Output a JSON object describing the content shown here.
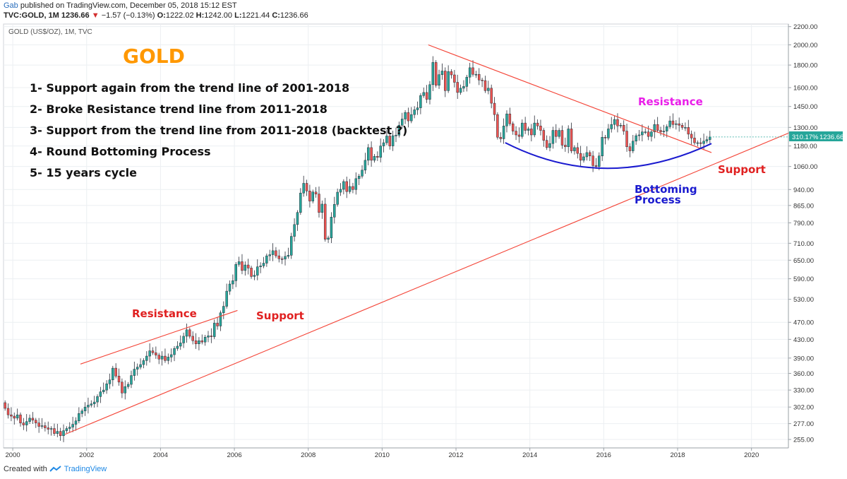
{
  "header": {
    "user": "Gab",
    "published": "published on TradingView.com, December 05, 2018 15:12 EST",
    "symbol": "TVC:GOLD, 1M",
    "price": "1236.66",
    "change_arrow": "▼",
    "change": "−1.57 (−0.13%)",
    "o_label": "O:",
    "o_value": "1222.02",
    "h_label": "H:",
    "h_value": "1242.00",
    "l_label": "L:",
    "l_value": "1221.44",
    "c_label": "C:",
    "c_value": "1236.66"
  },
  "legend_label": "GOLD (US$/OZ), 1M, TVC",
  "annotations": {
    "title": "GOLD",
    "points": [
      "1- Support again from the trend line of 2001-2018",
      "2- Broke Resistance trend line from 2011-2018",
      "3- Support from the trend line from 2011-2018 (backtest ?)",
      "4- Round Bottoming Process",
      "5- 15 years cycle"
    ],
    "resistance_left": "Resistance",
    "support_left": "Support",
    "resistance_right": "Resistance",
    "support_right": "Support",
    "bottoming_1": "Bottoming",
    "bottoming_2": "Process"
  },
  "price_badge": {
    "pct": "310.17%",
    "value": "1236.66"
  },
  "footer": {
    "created": "Created with",
    "brand": "TradingView"
  },
  "colors": {
    "up": "#26a69a",
    "down": "#ef5350",
    "trend": "#f44336",
    "curve": "#1a1acf",
    "title": "#ff9800",
    "resistance_right": "#e91ee9",
    "badge": "#26a69a"
  },
  "chart_data": {
    "type": "candlestick",
    "title": "GOLD (US$/OZ), 1M, TVC",
    "x_range": [
      1999.75,
      2021.0
    ],
    "y_scale": "log",
    "y_range": [
      244,
      2230
    ],
    "x_ticks": [
      "2000",
      "2002",
      "2004",
      "2006",
      "2008",
      "2010",
      "2012",
      "2014",
      "2016",
      "2018",
      "2020"
    ],
    "y_ticks": [
      "2200.00",
      "2000.00",
      "1800.00",
      "1600.00",
      "1450.00",
      "1300.00",
      "1180.00",
      "1060.00",
      "940.00",
      "865.00",
      "790.00",
      "710.00",
      "650.00",
      "590.00",
      "530.00",
      "470.00",
      "430.00",
      "390.00",
      "360.00",
      "330.00",
      "302.00",
      "277.00",
      "255.00"
    ],
    "grid": true,
    "first_date": "1999-10",
    "monthly_close": [
      300,
      290,
      288,
      285,
      290,
      278,
      275,
      280,
      285,
      282,
      278,
      273,
      274,
      271,
      269,
      270,
      263,
      266,
      260,
      267,
      270,
      272,
      276,
      281,
      292,
      296,
      302,
      305,
      307,
      310,
      319,
      327,
      330,
      341,
      348,
      370,
      355,
      344,
      325,
      336,
      340,
      356,
      368,
      372,
      377,
      385,
      394,
      405,
      401,
      396,
      388,
      394,
      385,
      392,
      397,
      410,
      415,
      422,
      437,
      452,
      437,
      427,
      420,
      427,
      424,
      435,
      438,
      436,
      468,
      461,
      494,
      511,
      553,
      574,
      584,
      636,
      645,
      616,
      634,
      624,
      597,
      601,
      628,
      631,
      640,
      665,
      669,
      683,
      665,
      655,
      654,
      663,
      667,
      736,
      783,
      834,
      923,
      971,
      933,
      885,
      928,
      918,
      834,
      871,
      725,
      730,
      814,
      870,
      927,
      941,
      980,
      930,
      955,
      940,
      995,
      1008,
      1040,
      1095,
      1170,
      1095,
      1118,
      1112,
      1180,
      1200,
      1243,
      1180,
      1245,
      1248,
      1315,
      1358,
      1405,
      1345,
      1390,
      1425,
      1440,
      1535,
      1560,
      1505,
      1625,
      1825,
      1620,
      1712,
      1745,
      1575,
      1740,
      1710,
      1645,
      1560,
      1595,
      1610,
      1690,
      1775,
      1715,
      1715,
      1665,
      1660,
      1575,
      1595,
      1475,
      1390,
      1235,
      1225,
      1310,
      1395,
      1325,
      1275,
      1250,
      1240,
      1330,
      1280,
      1290,
      1250,
      1330,
      1310,
      1280,
      1215,
      1170,
      1195,
      1280,
      1240,
      1280,
      1185,
      1175,
      1290,
      1150,
      1170,
      1135,
      1095,
      1115,
      1140,
      1120,
      1065,
      1060,
      1120,
      1235,
      1230,
      1290,
      1320,
      1355,
      1310,
      1315,
      1275,
      1175,
      1150,
      1210,
      1245,
      1250,
      1270,
      1270,
      1240,
      1270,
      1320,
      1280,
      1270,
      1275,
      1305,
      1345,
      1320,
      1325,
      1315,
      1300,
      1300,
      1255,
      1230,
      1200,
      1200,
      1195,
      1210,
      1220,
      1236.66
    ],
    "trend_lines": [
      {
        "label": "Support 2001-2018",
        "from": [
          "2001-06",
          262
        ],
        "to": [
          "2021-02",
          1270
        ]
      },
      {
        "label": "Resistance 2001-2006",
        "from": [
          "2001-11",
          378
        ],
        "to": [
          "2006-02",
          500
        ]
      },
      {
        "label": "Resistance 2011-2018",
        "from": [
          "2011-04",
          2000
        ],
        "to": [
          "2018-12",
          1140
        ]
      }
    ],
    "curve": {
      "label": "Bottoming Process",
      "from": [
        "2013-05",
        1200
      ],
      "bottom": [
        "2016-02",
        1050
      ],
      "to": [
        "2018-12",
        1195
      ]
    },
    "last_price": 1236.66
  }
}
